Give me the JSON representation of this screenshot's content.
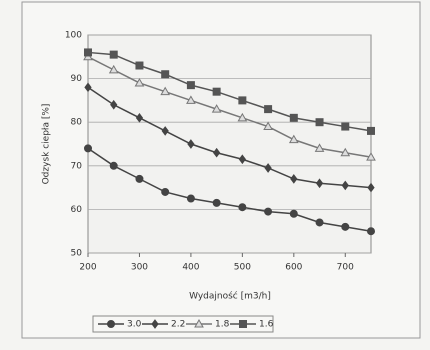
{
  "chart_data": {
    "type": "line",
    "x_label": "Wydajność [m3/h]",
    "y_label": "Odzysk ciepła [%]",
    "x": [
      200,
      250,
      300,
      350,
      400,
      450,
      500,
      550,
      600,
      650,
      700,
      750
    ],
    "xlim": [
      200,
      750
    ],
    "xticks": [
      200,
      300,
      400,
      500,
      600,
      700
    ],
    "ylim": [
      50,
      100
    ],
    "yticks": [
      50,
      60,
      70,
      80,
      90,
      100
    ],
    "grid": true,
    "legend": "bottom",
    "series": [
      {
        "name": "3.0",
        "color": "#444444",
        "marker": "circle",
        "values": [
          74,
          70,
          67,
          64,
          62.5,
          61.5,
          60.5,
          59.5,
          59,
          57,
          56,
          55
        ]
      },
      {
        "name": "2.2",
        "color": "#444444",
        "marker": "diamond",
        "values": [
          88,
          84,
          81,
          78,
          75,
          73,
          71.5,
          69.5,
          67,
          66,
          65.5,
          65
        ]
      },
      {
        "name": "1.8",
        "color": "#777777",
        "marker": "triangle",
        "values": [
          95,
          92,
          89,
          87,
          85,
          83,
          81,
          79,
          76,
          74,
          73,
          72
        ]
      },
      {
        "name": "1.6",
        "color": "#555555",
        "marker": "square",
        "values": [
          96,
          95.5,
          93,
          91,
          88.5,
          87,
          85,
          83,
          81,
          80,
          79,
          78
        ]
      }
    ]
  }
}
